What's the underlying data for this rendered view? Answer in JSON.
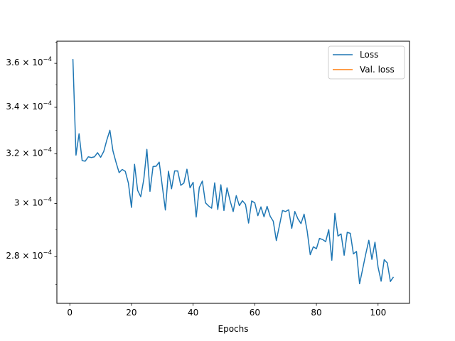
{
  "chart_data": {
    "type": "line",
    "title": "",
    "xlabel": "Epochs",
    "ylabel": "",
    "xlim": [
      -4.2,
      110.2
    ],
    "ylim": [
      0.0002635,
      0.0003705
    ],
    "y_scale": "log",
    "grid": false,
    "legend_position": "top-right",
    "x_ticks": [
      0,
      20,
      40,
      60,
      80,
      100
    ],
    "x_tick_labels": [
      "0",
      "20",
      "40",
      "60",
      "80",
      "100"
    ],
    "y_ticks": [
      0.00028,
      0.0003,
      0.00032,
      0.00034,
      0.00036
    ],
    "y_tick_labels": [
      {
        "mantissa": "2.8",
        "exponent": "−4"
      },
      {
        "mantissa": "3",
        "exponent": "−4"
      },
      {
        "mantissa": "3.2",
        "exponent": "−4"
      },
      {
        "mantissa": "3.4",
        "exponent": "−4"
      },
      {
        "mantissa": "3.6",
        "exponent": "−4"
      }
    ],
    "series": [
      {
        "name": "Loss",
        "color": "#1f77b4",
        "x": [
          1,
          2,
          3,
          4,
          5,
          6,
          7,
          8,
          9,
          10,
          11,
          12,
          13,
          14,
          15,
          16,
          17,
          18,
          19,
          20,
          21,
          22,
          23,
          24,
          25,
          26,
          27,
          28,
          29,
          30,
          31,
          32,
          33,
          34,
          35,
          36,
          37,
          38,
          39,
          40,
          41,
          42,
          43,
          44,
          45,
          46,
          47,
          48,
          49,
          50,
          51,
          52,
          53,
          54,
          55,
          56,
          57,
          58,
          59,
          60,
          61,
          62,
          63,
          64,
          65,
          66,
          67,
          68,
          69,
          70,
          71,
          72,
          73,
          74,
          75,
          76,
          77,
          78,
          79,
          80,
          81,
          82,
          83,
          84,
          85,
          86,
          87,
          88,
          89,
          90,
          91,
          92,
          93,
          94,
          95,
          96,
          97,
          98,
          99,
          100,
          101,
          102,
          103,
          104,
          105
        ],
        "values": [
          0.000362,
          0.0003195,
          0.0003285,
          0.0003172,
          0.000317,
          0.0003188,
          0.0003185,
          0.0003188,
          0.0003205,
          0.0003186,
          0.000321,
          0.0003258,
          0.00033,
          0.0003212,
          0.0003165,
          0.0003123,
          0.0003136,
          0.0003128,
          0.0003081,
          0.0002985,
          0.0003157,
          0.0003052,
          0.0003027,
          0.0003096,
          0.0003219,
          0.0003048,
          0.0003148,
          0.0003149,
          0.0003166,
          0.0003069,
          0.0002975,
          0.0003129,
          0.0003058,
          0.000313,
          0.000313,
          0.0003072,
          0.0003081,
          0.0003137,
          0.0003062,
          0.0003084,
          0.0002948,
          0.0003063,
          0.0003089,
          0.0003003,
          0.0002991,
          0.0002982,
          0.0003082,
          0.0002977,
          0.0003074,
          0.0002973,
          0.0003062,
          0.0003011,
          0.0002969,
          0.0003031,
          0.0002992,
          0.0003011,
          0.0002997,
          0.0002925,
          0.000301,
          0.0003003,
          0.0002953,
          0.0002987,
          0.0002949,
          0.0002989,
          0.0002951,
          0.0002932,
          0.0002859,
          0.0002915,
          0.0002973,
          0.0002969,
          0.0002976,
          0.0002905,
          0.0002969,
          0.0002941,
          0.0002923,
          0.0002959,
          0.0002895,
          0.0002807,
          0.0002836,
          0.0002829,
          0.0002867,
          0.0002863,
          0.0002855,
          0.00029,
          0.0002787,
          0.0002962,
          0.0002876,
          0.0002884,
          0.0002805,
          0.000289,
          0.0002886,
          0.000281,
          0.0002819,
          0.0002703,
          0.0002755,
          0.0002809,
          0.000286,
          0.000279,
          0.0002853,
          0.0002762,
          0.0002712,
          0.0002789,
          0.0002777,
          0.0002711,
          0.0002727
        ]
      },
      {
        "name": "Val. loss",
        "color": "#ff7f0e",
        "x": [],
        "values": []
      }
    ]
  }
}
